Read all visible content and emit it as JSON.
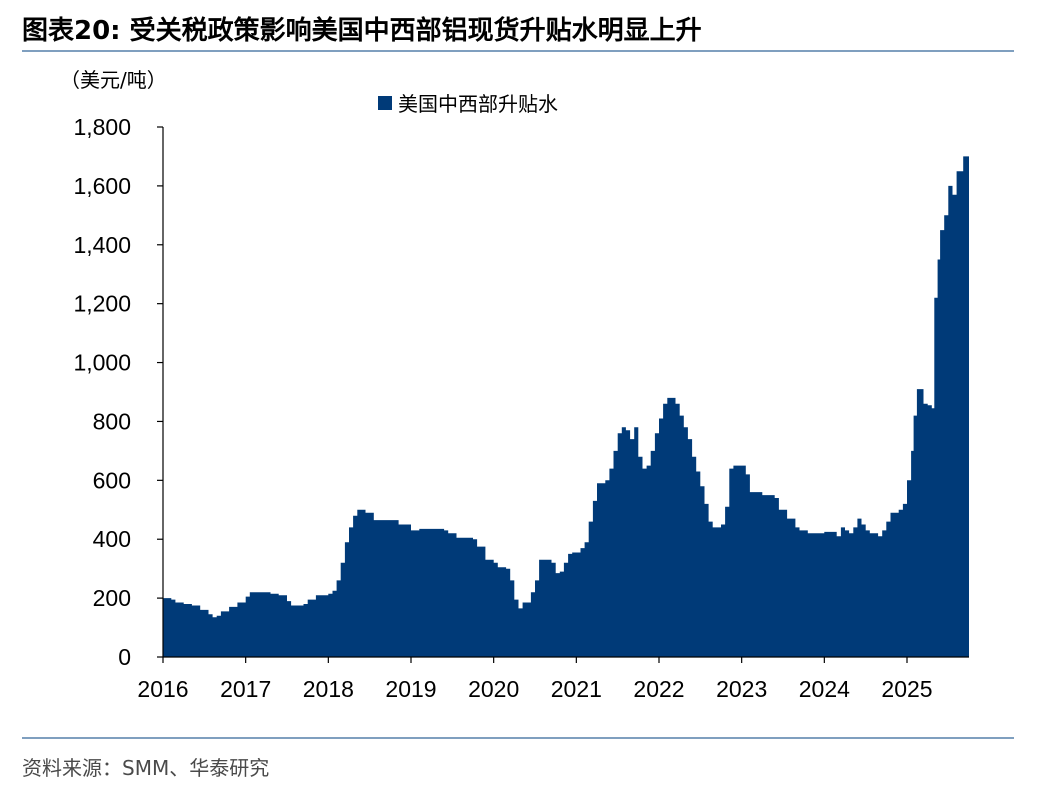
{
  "header": {
    "figure_title": "图表20:  受关税政策影响美国中西部铝现货升贴水明显上升"
  },
  "footer": {
    "source": "资料来源：SMM、华泰研究"
  },
  "chart_data": {
    "type": "area",
    "title": "",
    "unit_label": "（美元/吨）",
    "xlabel": "",
    "ylabel": "",
    "ylim": [
      0,
      1800
    ],
    "yticks": [
      0,
      200,
      400,
      600,
      800,
      1000,
      1200,
      1400,
      1600,
      1800
    ],
    "ytick_labels": [
      "0",
      "200",
      "400",
      "600",
      "800",
      "1,000",
      "1,200",
      "1,400",
      "1,600",
      "1,800"
    ],
    "xlim": [
      2016.0,
      2025.75
    ],
    "xticks": [
      2016,
      2017,
      2018,
      2019,
      2020,
      2021,
      2022,
      2023,
      2024,
      2025
    ],
    "xtick_labels": [
      "2016",
      "2017",
      "2018",
      "2019",
      "2020",
      "2021",
      "2022",
      "2023",
      "2024",
      "2025"
    ],
    "grid": false,
    "legend_position": "top-center",
    "colors": {
      "series": "#003a78",
      "rule": "#7f9fbf"
    },
    "series": [
      {
        "name": "美国中西部升贴水",
        "points": [
          [
            2016.0,
            200
          ],
          [
            2016.1,
            195
          ],
          [
            2016.15,
            185
          ],
          [
            2016.25,
            180
          ],
          [
            2016.35,
            175
          ],
          [
            2016.45,
            160
          ],
          [
            2016.55,
            145
          ],
          [
            2016.6,
            135
          ],
          [
            2016.65,
            140
          ],
          [
            2016.7,
            155
          ],
          [
            2016.8,
            170
          ],
          [
            2016.9,
            185
          ],
          [
            2017.0,
            205
          ],
          [
            2017.05,
            220
          ],
          [
            2017.2,
            220
          ],
          [
            2017.3,
            215
          ],
          [
            2017.4,
            210
          ],
          [
            2017.5,
            190
          ],
          [
            2017.55,
            175
          ],
          [
            2017.7,
            180
          ],
          [
            2017.75,
            195
          ],
          [
            2017.85,
            210
          ],
          [
            2018.0,
            215
          ],
          [
            2018.05,
            225
          ],
          [
            2018.1,
            260
          ],
          [
            2018.15,
            320
          ],
          [
            2018.2,
            390
          ],
          [
            2018.25,
            440
          ],
          [
            2018.3,
            480
          ],
          [
            2018.35,
            500
          ],
          [
            2018.45,
            490
          ],
          [
            2018.55,
            465
          ],
          [
            2018.85,
            450
          ],
          [
            2019.0,
            430
          ],
          [
            2019.1,
            435
          ],
          [
            2019.4,
            430
          ],
          [
            2019.45,
            420
          ],
          [
            2019.55,
            405
          ],
          [
            2019.75,
            400
          ],
          [
            2019.8,
            375
          ],
          [
            2019.9,
            330
          ],
          [
            2020.0,
            320
          ],
          [
            2020.05,
            305
          ],
          [
            2020.15,
            300
          ],
          [
            2020.2,
            260
          ],
          [
            2020.25,
            195
          ],
          [
            2020.3,
            165
          ],
          [
            2020.35,
            185
          ],
          [
            2020.45,
            220
          ],
          [
            2020.5,
            260
          ],
          [
            2020.55,
            330
          ],
          [
            2020.7,
            320
          ],
          [
            2020.75,
            285
          ],
          [
            2020.8,
            290
          ],
          [
            2020.85,
            320
          ],
          [
            2020.9,
            350
          ],
          [
            2020.95,
            355
          ],
          [
            2021.05,
            370
          ],
          [
            2021.1,
            390
          ],
          [
            2021.15,
            460
          ],
          [
            2021.2,
            530
          ],
          [
            2021.25,
            590
          ],
          [
            2021.35,
            600
          ],
          [
            2021.4,
            640
          ],
          [
            2021.45,
            700
          ],
          [
            2021.5,
            760
          ],
          [
            2021.55,
            780
          ],
          [
            2021.6,
            770
          ],
          [
            2021.65,
            740
          ],
          [
            2021.7,
            780
          ],
          [
            2021.75,
            680
          ],
          [
            2021.8,
            640
          ],
          [
            2021.85,
            650
          ],
          [
            2021.9,
            700
          ],
          [
            2021.95,
            760
          ],
          [
            2022.0,
            810
          ],
          [
            2022.05,
            860
          ],
          [
            2022.1,
            880
          ],
          [
            2022.15,
            880
          ],
          [
            2022.2,
            860
          ],
          [
            2022.25,
            820
          ],
          [
            2022.3,
            780
          ],
          [
            2022.35,
            740
          ],
          [
            2022.4,
            680
          ],
          [
            2022.45,
            630
          ],
          [
            2022.5,
            580
          ],
          [
            2022.55,
            520
          ],
          [
            2022.6,
            460
          ],
          [
            2022.65,
            440
          ],
          [
            2022.75,
            450
          ],
          [
            2022.8,
            510
          ],
          [
            2022.85,
            640
          ],
          [
            2022.9,
            650
          ],
          [
            2023.05,
            620
          ],
          [
            2023.1,
            560
          ],
          [
            2023.25,
            550
          ],
          [
            2023.4,
            540
          ],
          [
            2023.45,
            500
          ],
          [
            2023.55,
            470
          ],
          [
            2023.65,
            440
          ],
          [
            2023.7,
            430
          ],
          [
            2023.8,
            420
          ],
          [
            2023.9,
            420
          ],
          [
            2024.0,
            425
          ],
          [
            2024.15,
            410
          ],
          [
            2024.2,
            440
          ],
          [
            2024.25,
            430
          ],
          [
            2024.3,
            420
          ],
          [
            2024.35,
            440
          ],
          [
            2024.4,
            470
          ],
          [
            2024.45,
            450
          ],
          [
            2024.5,
            430
          ],
          [
            2024.55,
            420
          ],
          [
            2024.65,
            410
          ],
          [
            2024.7,
            430
          ],
          [
            2024.75,
            460
          ],
          [
            2024.8,
            490
          ],
          [
            2024.9,
            500
          ],
          [
            2024.95,
            520
          ],
          [
            2025.0,
            600
          ],
          [
            2025.05,
            700
          ],
          [
            2025.08,
            820
          ],
          [
            2025.12,
            910
          ],
          [
            2025.2,
            860
          ],
          [
            2025.25,
            855
          ],
          [
            2025.3,
            845
          ],
          [
            2025.33,
            1220
          ],
          [
            2025.37,
            1350
          ],
          [
            2025.4,
            1450
          ],
          [
            2025.45,
            1500
          ],
          [
            2025.5,
            1600
          ],
          [
            2025.55,
            1570
          ],
          [
            2025.6,
            1650
          ],
          [
            2025.68,
            1700
          ],
          [
            2025.73,
            1700
          ]
        ]
      }
    ]
  }
}
